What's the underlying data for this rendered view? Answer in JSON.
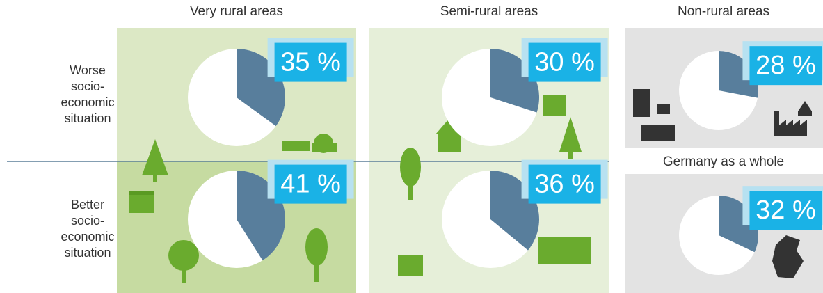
{
  "columns": [
    "Very rural areas",
    "Semi-rural areas",
    "Non-rural areas",
    "Germany as a whole"
  ],
  "rows": [
    "Worse socio-economic situation",
    "Better socio-economic situation"
  ],
  "chart_data": [
    {
      "type": "pie",
      "values": [
        35
      ],
      "value_labels": [
        "35 %"
      ],
      "color": "#587e9c"
    },
    {
      "type": "pie",
      "values": [
        41
      ],
      "value_labels": [
        "41 %"
      ],
      "color": "#587e9c"
    },
    {
      "type": "pie",
      "values": [
        30
      ],
      "value_labels": [
        "30 %"
      ],
      "color": "#587e9c"
    },
    {
      "type": "pie",
      "values": [
        36
      ],
      "value_labels": [
        "36 %"
      ],
      "color": "#587e9c"
    },
    {
      "type": "pie",
      "values": [
        28
      ],
      "value_labels": [
        "28 %"
      ],
      "color": "#587e9c"
    },
    {
      "type": "pie",
      "values": [
        32
      ],
      "value_labels": [
        "32 %"
      ],
      "color": "#587e9c"
    }
  ]
}
